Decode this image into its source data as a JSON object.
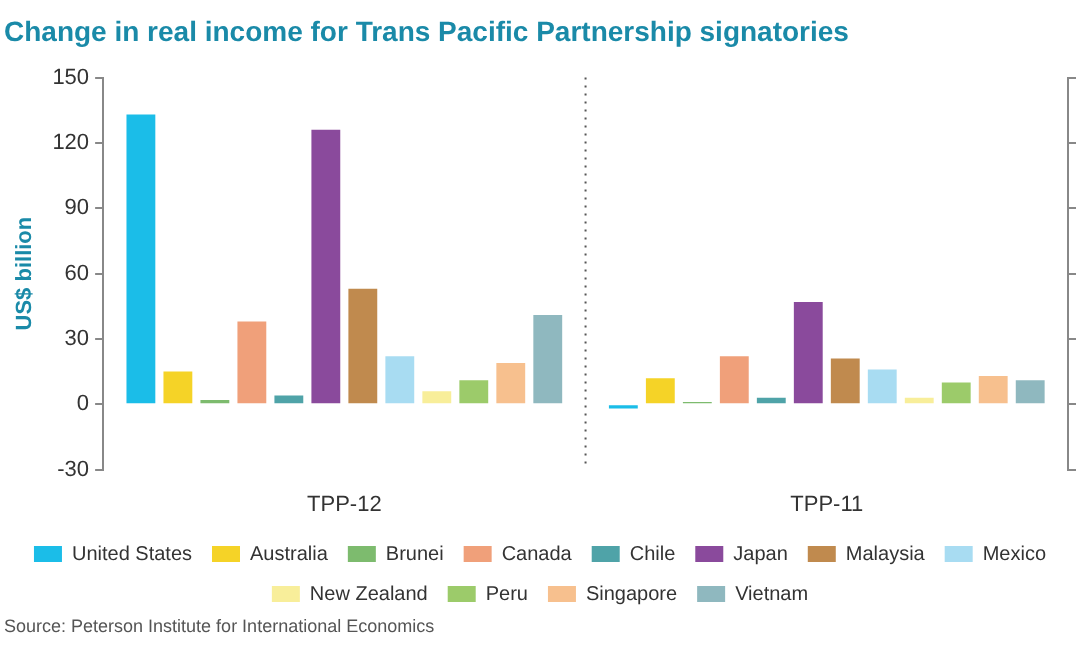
{
  "chart_data": {
    "type": "bar",
    "title": "Change in real income for Trans Pacific Partnership signatories",
    "ylabel": "US$ billion",
    "categories": [
      "TPP-12",
      "TPP-11"
    ],
    "series": [
      {
        "name": "United States",
        "color": "#1bbde8",
        "values": [
          133,
          -2
        ]
      },
      {
        "name": "Australia",
        "color": "#f5d327",
        "values": [
          15,
          12
        ]
      },
      {
        "name": "Brunei",
        "color": "#7dbb6e",
        "values": [
          2,
          1
        ]
      },
      {
        "name": "Canada",
        "color": "#f0a07a",
        "values": [
          38,
          22
        ]
      },
      {
        "name": "Chile",
        "color": "#4fa3a8",
        "values": [
          4,
          3
        ]
      },
      {
        "name": "Japan",
        "color": "#8a4a9c",
        "values": [
          126,
          47
        ]
      },
      {
        "name": "Malaysia",
        "color": "#c08a4e",
        "values": [
          53,
          21
        ]
      },
      {
        "name": "Mexico",
        "color": "#a8dcf2",
        "values": [
          22,
          16
        ]
      },
      {
        "name": "New Zealand",
        "color": "#f8ee9a",
        "values": [
          6,
          3
        ]
      },
      {
        "name": "Peru",
        "color": "#9ccb6a",
        "values": [
          11,
          10
        ]
      },
      {
        "name": "Singapore",
        "color": "#f7c08e",
        "values": [
          19,
          13
        ]
      },
      {
        "name": "Vietnam",
        "color": "#8fb8bf",
        "values": [
          41,
          11
        ]
      }
    ],
    "ylim": [
      -30,
      150
    ],
    "yticks": [
      -30,
      0,
      30,
      60,
      90,
      120,
      150
    ],
    "legend": "bottom",
    "annotations": [
      "Source: Peterson Institute for International Economics"
    ]
  }
}
